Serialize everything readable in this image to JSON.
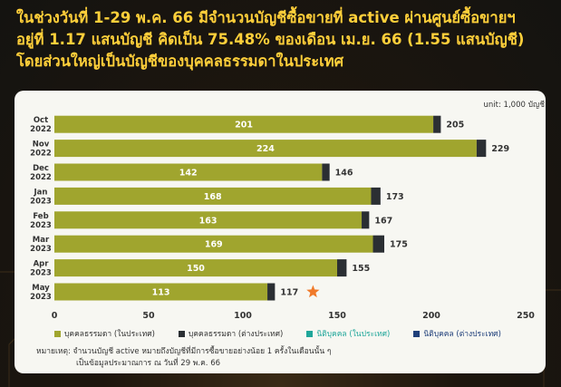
{
  "headline": {
    "line1": "ในช่วงวันที่ 1-29 พ.ค. 66 มีจำนวนบัญชีซื้อขายที่ active ผ่านศูนย์ซื้อขายฯ",
    "line2": "อยู่ที่ 1.17 แสนบัญชี คิดเป็น 75.48% ของเดือน เม.ย. 66 (1.55 แสนบัญชี)",
    "line3": "โดยส่วนใหญ่เป็นบัญชีของบุคคลธรรมดาในประเทศ"
  },
  "unit_label": "unit: 1,000 บัญชี",
  "legend": [
    {
      "label": "บุคคลธรรมดา (ในประเทศ)",
      "color": "#a0a52e"
    },
    {
      "label": "บุคคลธรรมดา (ต่างประเทศ)",
      "color": "#2b2f33"
    },
    {
      "label": "นิติบุคคล (ในประเทศ)",
      "color": "#1fa69a"
    },
    {
      "label": "นิติบุคคล (ต่างประเทศ)",
      "color": "#1f3f7a"
    }
  ],
  "note": {
    "line1": "หมายเหตุ: จำนวนบัญชี active หมายถึงบัญชีที่มีการซื้อขายอย่างน้อย 1 ครั้งในเดือนนั้น ๆ",
    "line2": "เป็นข้อมูลประมาณการ ณ วันที่ 29 พ.ค. 66"
  },
  "colors": {
    "highlight_star": "#f07a2a",
    "headline_text": "#ffcf3a"
  },
  "chart_data": {
    "type": "bar",
    "orientation": "horizontal",
    "stacked": true,
    "categories": [
      [
        "Oct",
        "2022"
      ],
      [
        "Nov",
        "2022"
      ],
      [
        "Dec",
        "2022"
      ],
      [
        "Jan",
        "2023"
      ],
      [
        "Feb",
        "2023"
      ],
      [
        "Mar",
        "2023"
      ],
      [
        "Apr",
        "2023"
      ],
      [
        "May",
        "2023"
      ]
    ],
    "series": [
      {
        "name": "บุคคลธรรมดา (ในประเทศ)",
        "color": "#a0a52e",
        "values": [
          201,
          224,
          142,
          168,
          163,
          169,
          150,
          113
        ]
      },
      {
        "name": "บุคคลธรรมดา (ต่างประเทศ)",
        "color": "#2b2f33",
        "values": [
          4,
          5,
          4,
          5,
          4,
          6,
          5,
          4
        ]
      },
      {
        "name": "นิติบุคคล (ในประเทศ)",
        "color": "#1fa69a",
        "values": [
          0,
          0,
          0,
          0,
          0,
          0,
          0,
          0
        ]
      },
      {
        "name": "นิติบุคคล (ต่างประเทศ)",
        "color": "#1f3f7a",
        "values": [
          0,
          0,
          0,
          0,
          0,
          0,
          0,
          0
        ]
      }
    ],
    "totals": [
      205,
      229,
      146,
      173,
      167,
      175,
      155,
      117
    ],
    "highlight_category_index": 7,
    "xlim": [
      0,
      250
    ],
    "xticks": [
      0,
      50,
      100,
      150,
      200,
      250
    ],
    "grid": false,
    "legend_position": "bottom"
  }
}
